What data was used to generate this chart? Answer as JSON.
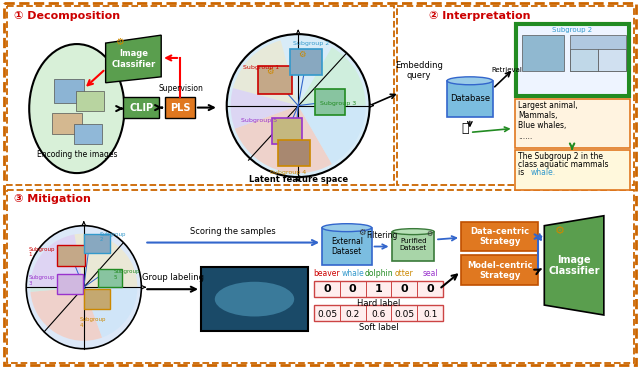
{
  "section1_title": "① Decomposition",
  "section2_title": "② Interpretation",
  "section3_title": "③ Mitigation",
  "title_color": "#cc0000",
  "hard_label_values": [
    "0",
    "0",
    "1",
    "0",
    "0"
  ],
  "soft_label_values": [
    "0.05",
    "0.2",
    "0.6",
    "0.05",
    "0.1"
  ],
  "label_headers": [
    "beaver",
    "whale",
    "dolphin",
    "otter",
    "seal"
  ],
  "label_header_colors": [
    "#cc0000",
    "#3399cc",
    "#228b22",
    "#cc8800",
    "#9933cc"
  ],
  "interp_text1": "Largest animal,\nMammals,\nBlue whales,\n......",
  "interp_text2": "The Subgroup 2 in the\nclass aquatic mammals\nis whale.",
  "encoding_label": "Encoding the images",
  "latent_label": "Latent feature space",
  "supervision_label": "Supervision",
  "embedding_label": "Embedding\nquery",
  "retrieval_label": "Retrieval",
  "database_label": "Database",
  "scoring_label": "Scoring the samples",
  "group_label": "Group labeling",
  "filtering_label": "Filtering",
  "hard_label_text": "Hard label",
  "soft_label_text": "Soft label",
  "data_centric": "Data-centric\nStrategy",
  "model_centric": "Model-centric\nStrategy",
  "image_classifier_label": "Image\nClassifier",
  "clip_label": "CLIP",
  "pls_label": "PLS",
  "external_dataset": "External\nDataset",
  "purified_dataset": "Purified\nDataset",
  "subgroup2_label": "Subgroup 2",
  "database_fc": "#7bbde0",
  "database_ec": "#3366cc",
  "green_fc": "#5a9e4e",
  "orange_fc": "#e07820",
  "outer_dash_color": "#cc6600",
  "top_inner_dash": "#cc6600",
  "bot_inner_dash": "#cc6600",
  "interp_border_color": "#e07820",
  "interp2_border_color": "#e07820",
  "green_result_border": "#228b22",
  "purified_fc": "#a8d5a8",
  "purified_ec": "#3a7a3a"
}
